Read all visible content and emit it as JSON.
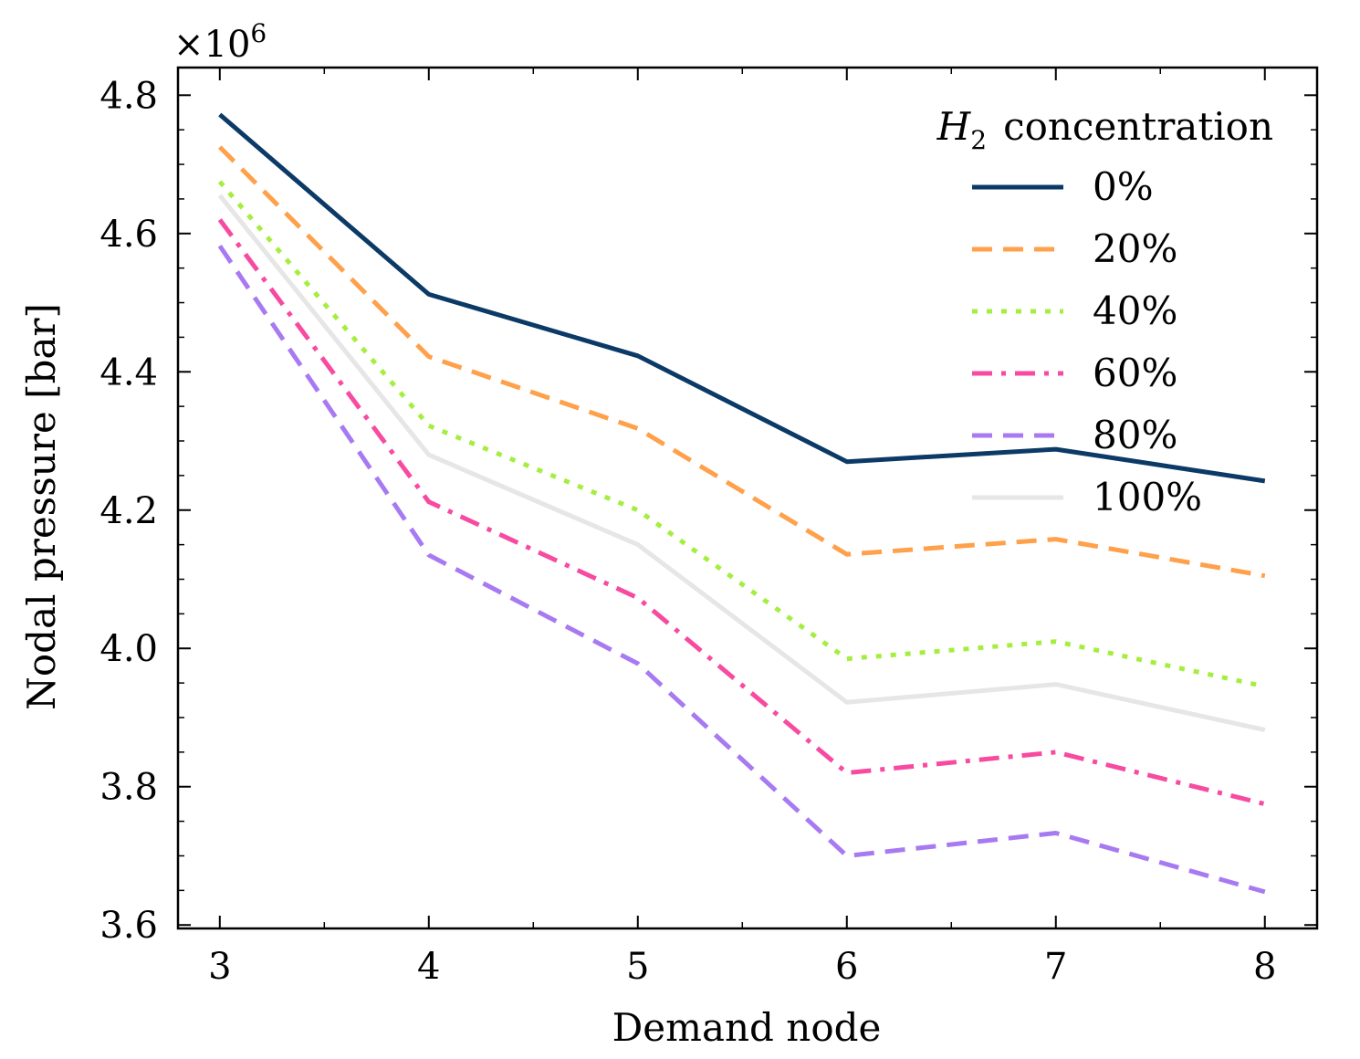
{
  "chart_data": {
    "type": "line",
    "title": "",
    "xlabel": "Demand node",
    "ylabel": "Nodal pressure [bar]",
    "y_multiplier_label": "×10",
    "y_multiplier_exponent": "6",
    "x": [
      3,
      4,
      5,
      6,
      7,
      8
    ],
    "x_ticks": [
      "3",
      "4",
      "5",
      "6",
      "7",
      "8"
    ],
    "xlim": [
      2.8,
      8.25
    ],
    "ylim": [
      3.595,
      4.84
    ],
    "y_ticks": [
      3.6,
      3.8,
      4.0,
      4.2,
      4.4,
      4.6,
      4.8
    ],
    "y_tick_labels": [
      "3.6",
      "3.8",
      "4.0",
      "4.2",
      "4.4",
      "4.6",
      "4.8"
    ],
    "grid": false,
    "legend": {
      "title_symbol": "H",
      "title_subscript": "2",
      "title_text": "concentration",
      "placement": "top-right"
    },
    "series": [
      {
        "name": "0%",
        "color": "#0c3a66",
        "style": "solid",
        "values": [
          4.772,
          4.512,
          4.423,
          4.27,
          4.288,
          4.242
        ]
      },
      {
        "name": "20%",
        "color": "#ffa04a",
        "style": "dashed",
        "values": [
          4.725,
          4.422,
          4.318,
          4.136,
          4.158,
          4.105
        ]
      },
      {
        "name": "40%",
        "color": "#a5ee40",
        "style": "dotted",
        "values": [
          4.675,
          4.322,
          4.2,
          3.985,
          4.01,
          3.945
        ]
      },
      {
        "name": "60%",
        "color": "#f74aa1",
        "style": "dashdot",
        "values": [
          4.62,
          4.212,
          4.073,
          3.82,
          3.85,
          3.775
        ]
      },
      {
        "name": "80%",
        "color": "#a87af2",
        "style": "dashed",
        "values": [
          4.582,
          4.135,
          3.978,
          3.7,
          3.733,
          3.648
        ]
      },
      {
        "name": "100%",
        "color": "#e6e6e6",
        "style": "solid",
        "values": [
          4.655,
          4.28,
          4.15,
          3.922,
          3.948,
          3.882
        ]
      }
    ]
  }
}
